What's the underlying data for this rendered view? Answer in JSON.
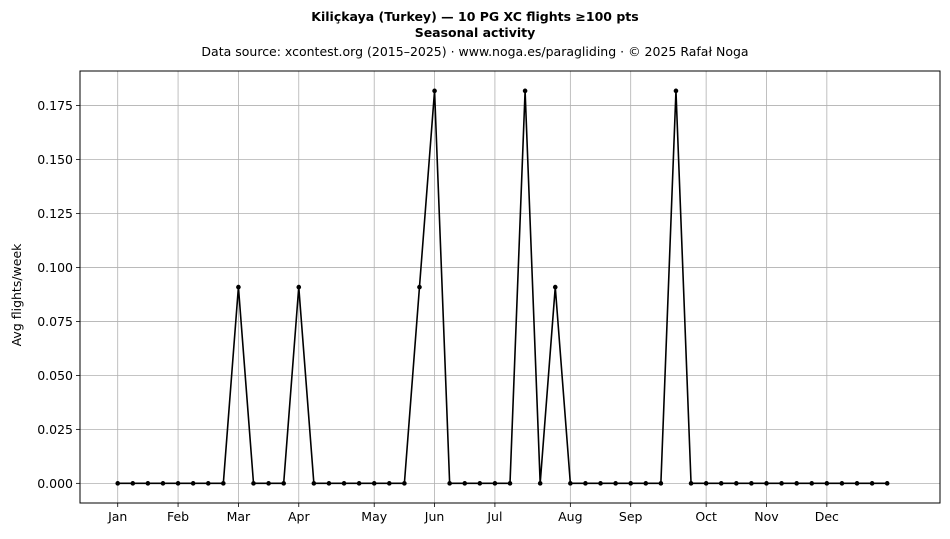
{
  "chart_data": {
    "type": "line",
    "title": "Kiliçkaya (Turkey)  —  10 PG XC flights ≥100 pts",
    "title_line2": "Seasonal activity",
    "subtitle": "Data source: xcontest.org (2015–2025)  ·  www.noga.es/paragliding  ·  © 2025 Rafał Noga",
    "xlabel": "",
    "ylabel": "Avg flights/week",
    "ylim": [
      -0.0091,
      0.191
    ],
    "xlim": [
      -2.5,
      54.5
    ],
    "grid": true,
    "legend": "none",
    "line_color": "#000000",
    "x_ticks": [
      {
        "label": "Jan",
        "week": 0
      },
      {
        "label": "Feb",
        "week": 4
      },
      {
        "label": "Mar",
        "week": 8
      },
      {
        "label": "Apr",
        "week": 12
      },
      {
        "label": "May",
        "week": 17
      },
      {
        "label": "Jun",
        "week": 21
      },
      {
        "label": "Jul",
        "week": 25
      },
      {
        "label": "Aug",
        "week": 30
      },
      {
        "label": "Sep",
        "week": 34
      },
      {
        "label": "Oct",
        "week": 39
      },
      {
        "label": "Nov",
        "week": 43
      },
      {
        "label": "Dec",
        "week": 47
      }
    ],
    "y_ticks": [
      "0.000",
      "0.025",
      "0.050",
      "0.075",
      "0.100",
      "0.125",
      "0.150",
      "0.175"
    ],
    "x": [
      0,
      1,
      2,
      3,
      4,
      5,
      6,
      7,
      8,
      9,
      10,
      11,
      12,
      13,
      14,
      15,
      16,
      17,
      18,
      19,
      20,
      21,
      22,
      23,
      24,
      25,
      26,
      27,
      28,
      29,
      30,
      31,
      32,
      33,
      34,
      35,
      36,
      37,
      38,
      39,
      40,
      41,
      42,
      43,
      44,
      45,
      46,
      47,
      48,
      49,
      50,
      51
    ],
    "values": [
      0,
      0,
      0,
      0,
      0,
      0,
      0,
      0,
      0.0909,
      0,
      0,
      0,
      0.0909,
      0,
      0,
      0,
      0,
      0,
      0,
      0,
      0.0909,
      0.1818,
      0,
      0,
      0,
      0,
      0,
      0.1818,
      0,
      0.0909,
      0,
      0,
      0,
      0,
      0,
      0,
      0,
      0.1818,
      0,
      0,
      0,
      0,
      0,
      0,
      0,
      0,
      0,
      0,
      0,
      0,
      0,
      0
    ]
  }
}
